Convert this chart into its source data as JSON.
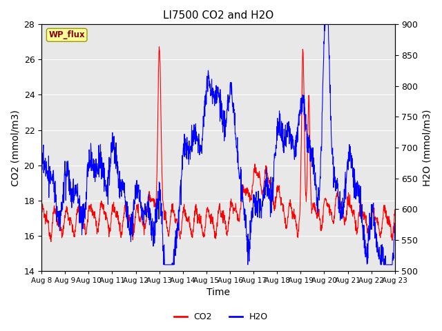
{
  "title": "LI7500 CO2 and H2O",
  "xlabel": "Time",
  "ylabel_left": "CO2 (mmol/m3)",
  "ylabel_right": "H2O (mmol/m3)",
  "annotation": "WP_flux",
  "ylim_left": [
    14,
    28
  ],
  "ylim_right": [
    500,
    900
  ],
  "xtick_labels": [
    "Aug 8",
    "Aug 9",
    "Aug 10",
    "Aug 11",
    "Aug 12",
    "Aug 13",
    "Aug 14",
    "Aug 15",
    "Aug 16",
    "Aug 17",
    "Aug 18",
    "Aug 19",
    "Aug 20",
    "Aug 21",
    "Aug 22",
    "Aug 23"
  ],
  "co2_color": "#FF0000",
  "h2o_color": "#0000FF",
  "legend_labels": [
    "CO2",
    "H2O"
  ],
  "axes_facecolor": "#E8E8E8",
  "linewidth": 0.8,
  "title_fontsize": 11,
  "label_fontsize": 9,
  "tick_fontsize": 7.5
}
